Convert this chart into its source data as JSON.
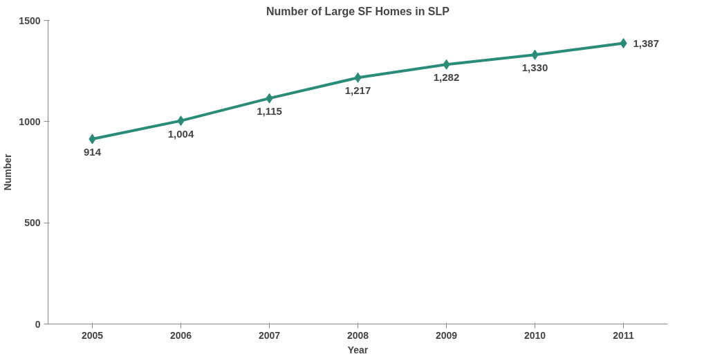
{
  "chart_data": {
    "type": "line",
    "title": "Number of Large SF Homes in SLP",
    "xlabel": "Year",
    "ylabel": "Number",
    "categories": [
      "2005",
      "2006",
      "2007",
      "2008",
      "2009",
      "2010",
      "2011"
    ],
    "series": [
      {
        "color": "#2a8c78",
        "values": [
          914,
          1004,
          1115,
          1217,
          1282,
          1330,
          1387
        ],
        "value_labels": [
          "914",
          "1,004",
          "1,115",
          "1,217",
          "1,282",
          "1,330",
          "1,387"
        ]
      }
    ],
    "ylim": [
      0,
      1500
    ],
    "yticks": [
      0,
      500,
      1000,
      1500
    ],
    "grid": false,
    "marker": "diamond",
    "line_style": "solid"
  }
}
